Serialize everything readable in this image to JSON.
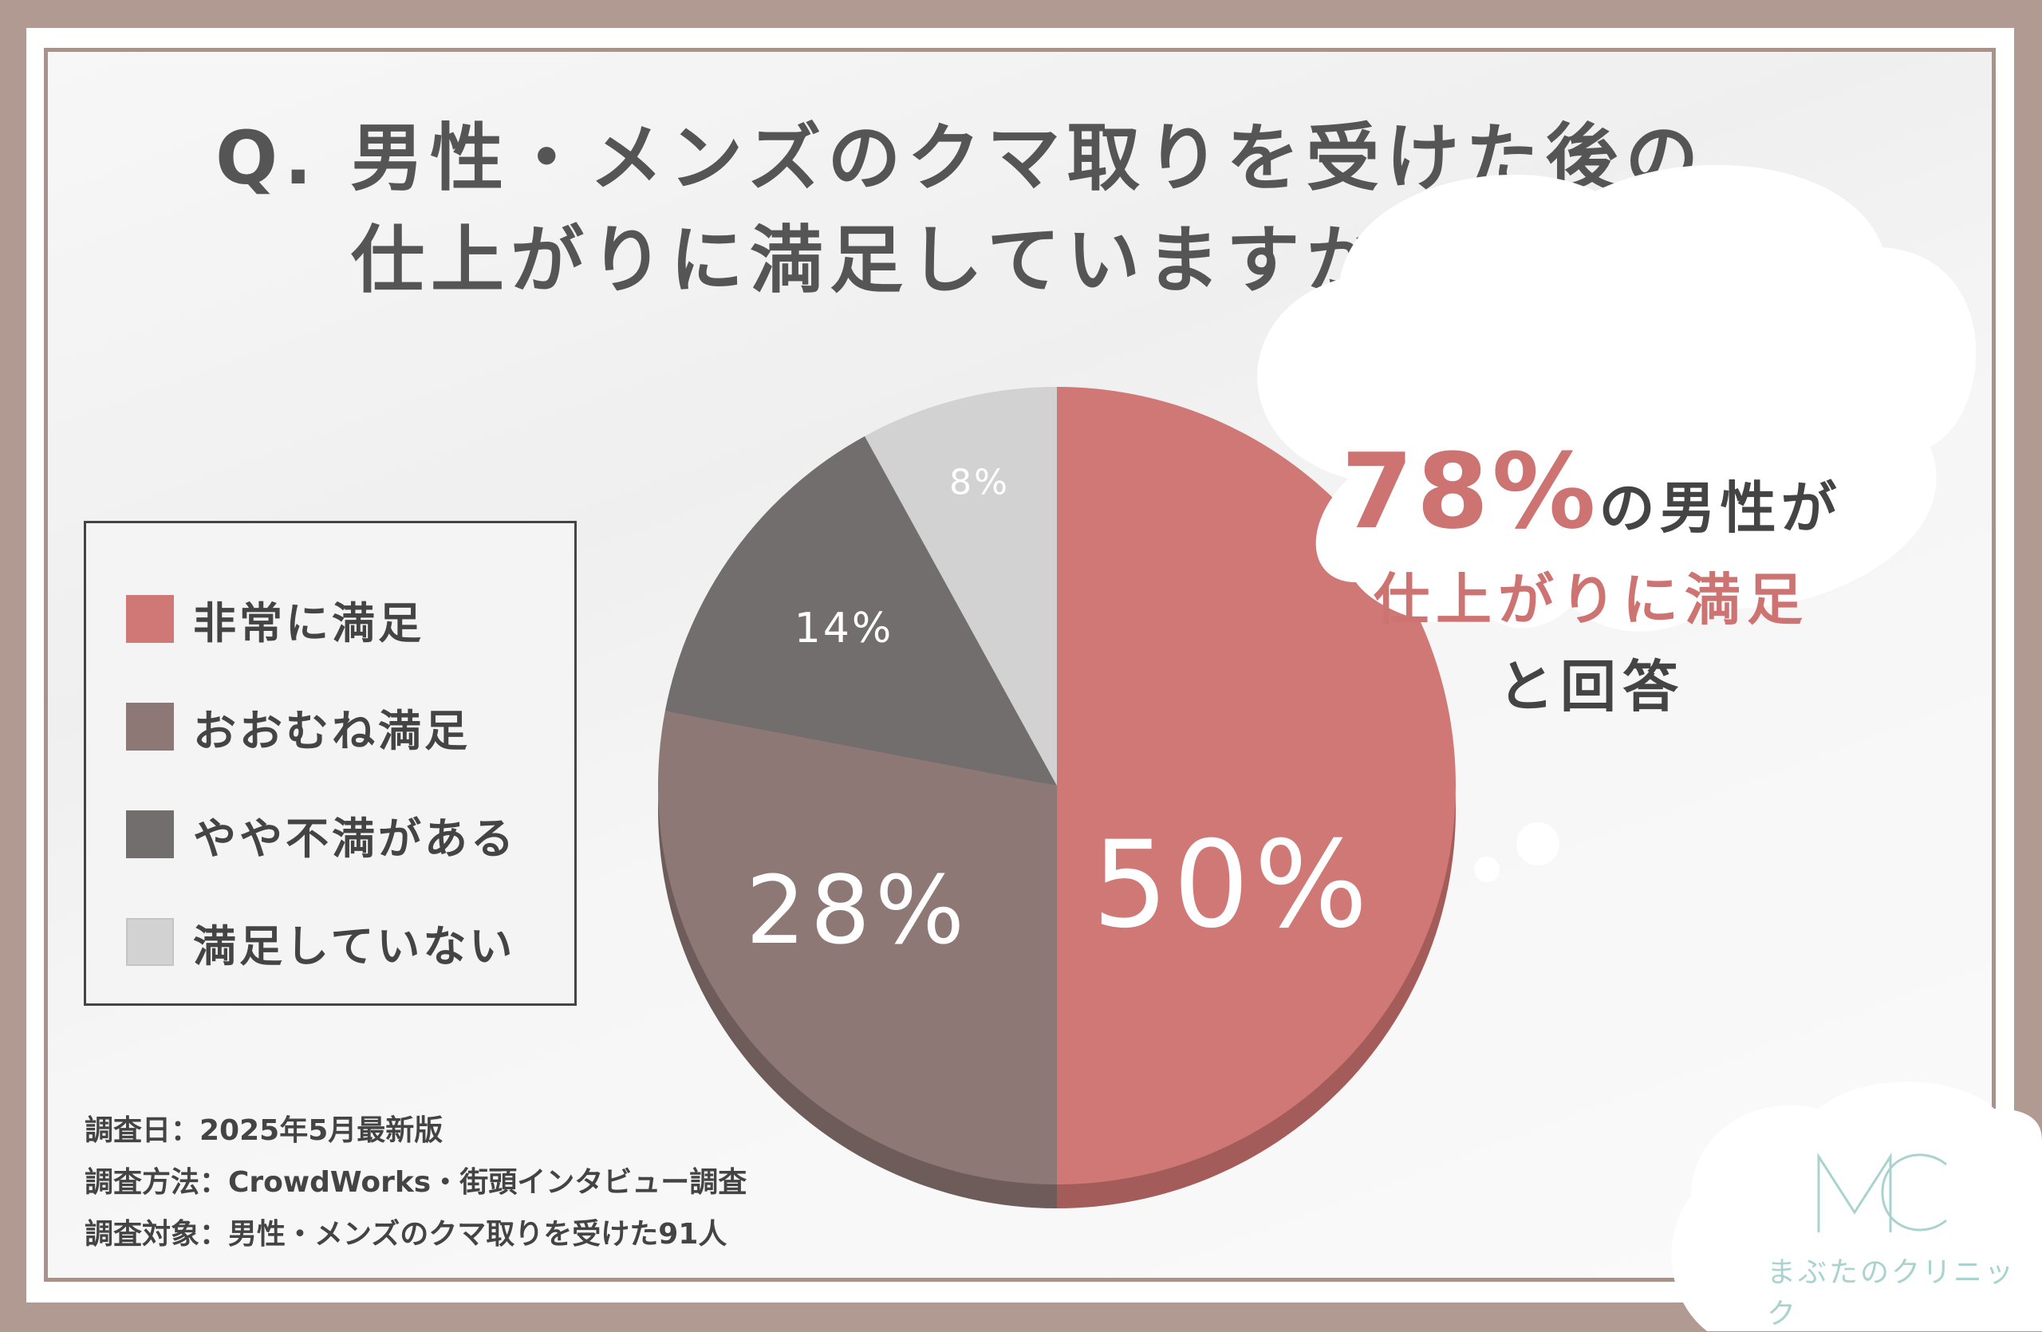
{
  "title": {
    "line1": "Q. 男性・メンズのクマ取りを受けた後の",
    "line2": "仕上がりに満足していますか？"
  },
  "colors": {
    "very_satisfied": "#cf7875",
    "mostly_satisfied": "#8e7876",
    "slightly_unsatisfied": "#726e6e",
    "unsatisfied": "#d2d2d2",
    "accent": "#cd7371",
    "logo": "#a9d3ce"
  },
  "chart_data": {
    "type": "pie",
    "title": "Q. 男性・メンズのクマ取りを受けた後の仕上がりに満足していますか？",
    "slices": [
      {
        "label": "非常に満足",
        "value": 50,
        "display": "50%"
      },
      {
        "label": "おおむね満足",
        "value": 28,
        "display": "28%"
      },
      {
        "label": "やや不満がある",
        "value": 14,
        "display": "14%"
      },
      {
        "label": "満足していない",
        "value": 8,
        "display": "8%"
      }
    ],
    "legend_position": "left"
  },
  "legend": [
    {
      "label": "非常に満足"
    },
    {
      "label": "おおむね満足"
    },
    {
      "label": "やや不満がある"
    },
    {
      "label": "満足していない"
    }
  ],
  "callout": {
    "big": "78%",
    "suffix": "の男性が",
    "line2": "仕上がりに満足",
    "line3": "と回答"
  },
  "notes": [
    "調査日：2025年5月最新版",
    "調査方法：CrowdWorks・街頭インタビュー調査",
    "調査対象：男性・メンズのクマ取りを受けた91人"
  ],
  "logo": {
    "mark": "MC",
    "name": "まぶたのクリニック"
  }
}
